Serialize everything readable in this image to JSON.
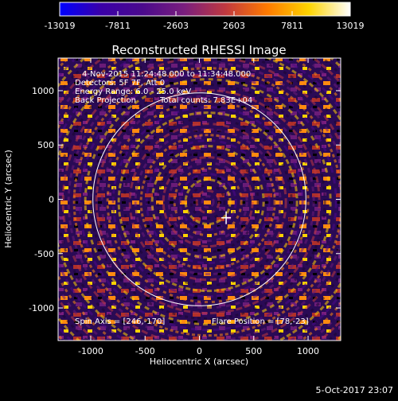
{
  "chart_data": {
    "type": "heatmap",
    "title": "Reconstructed RHESSI Image",
    "xlabel": "Heliocentric X (arcsec)",
    "ylabel": "Heliocentric Y (arcsec)",
    "xlim": [
      -1300,
      1300
    ],
    "ylim": [
      -1300,
      1300
    ],
    "x_ticks": [
      -1000,
      -500,
      0,
      500,
      1000
    ],
    "y_ticks": [
      -1000,
      -500,
      0,
      500,
      1000
    ],
    "colorbar": {
      "min": -13019,
      "max": 13019,
      "tick_values": [
        -13019,
        -7811,
        -2603,
        2603,
        7811,
        13019
      ],
      "tick_labels": [
        "-13019",
        "-7811",
        "-2603",
        "2603",
        "7811",
        "13019"
      ],
      "colors": [
        "#0000ff",
        "#3a00a8",
        "#4b0a8c",
        "#7a1e7e",
        "#c0393f",
        "#ff7a00",
        "#ffd400",
        "#ffffff"
      ]
    },
    "solar_limb_radius_arcsec": 980,
    "annotations": {
      "time_range": "4-Nov-2015 11:24:48.000 to 11:34:48.000",
      "detectors": "Detectors: 5F 7F, Att 0",
      "energy": "Energy Range: 6.0 - 25.0 keV",
      "method": "Back Projection",
      "counts": "Total counts: 7.83E+04",
      "spin_axis": "Spin Axis = [246,-170]",
      "flare_position": "Flare Position = [78,-23]"
    },
    "spin_axis": [
      246,
      -170
    ],
    "flare_position": [
      78,
      -23
    ],
    "timestamp": "5-Oct-2017 23:07"
  }
}
